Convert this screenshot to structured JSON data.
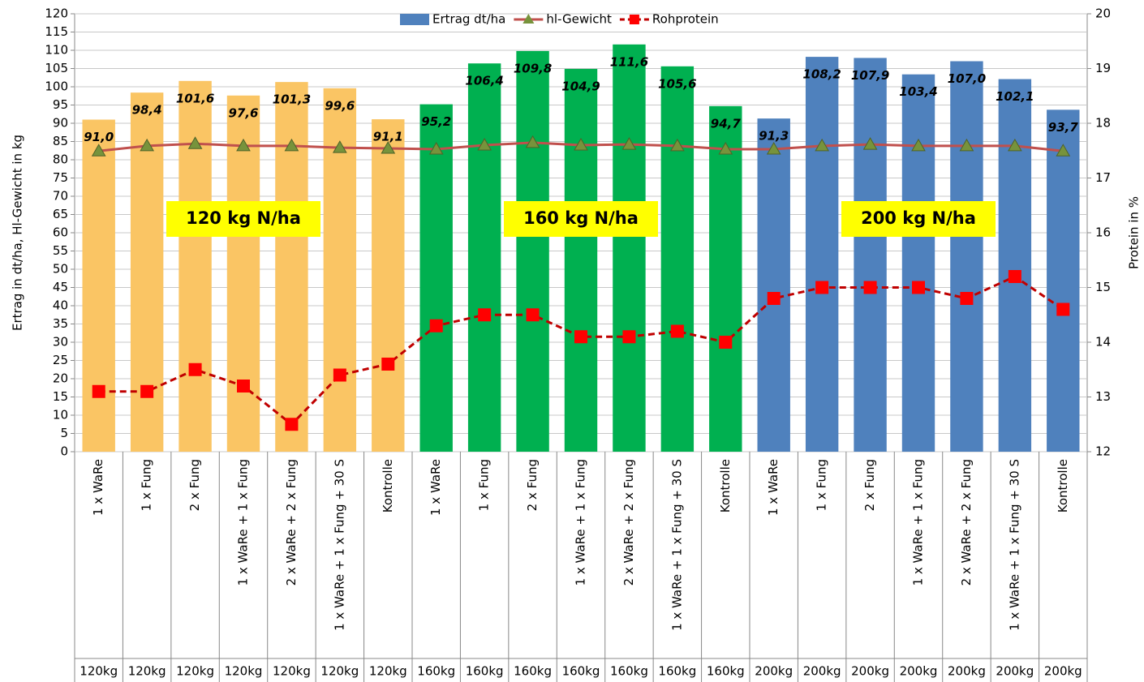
{
  "chart_data": {
    "type": "bar_line",
    "y_label": "Ertrag in dt/ha, Hl-Gewicht in kg",
    "y2_label": "Protein in %",
    "categories": [
      "1 x WaRe",
      "1 x Fung",
      "2 x Fung",
      "1 x WaRe + 1 x Fung",
      "2 x WaRe + 2 x Fung",
      "1 x WaRe + 1 x Fung + 30 S",
      "Kontrolle",
      "1 x WaRe",
      "1 x Fung",
      "2 x Fung",
      "1 x WaRe + 1 x Fung",
      "2 x WaRe + 2 x Fung",
      "1 x WaRe + 1 x Fung + 30 S",
      "Kontrolle",
      "1 x WaRe",
      "1 x Fung",
      "2 x Fung",
      "1 x WaRe + 1 x Fung",
      "2 x WaRe + 2 x Fung",
      "1 x WaRe + 1 x Fung + 30 S",
      "Kontrolle"
    ],
    "group_labels": [
      "120kg",
      "120kg",
      "120kg",
      "120kg",
      "120kg",
      "120kg",
      "120kg",
      "160kg",
      "160kg",
      "160kg",
      "160kg",
      "160kg",
      "160kg",
      "160kg",
      "200kg",
      "200kg",
      "200kg",
      "200kg",
      "200kg",
      "200kg",
      "200kg"
    ],
    "annotations": [
      "120 kg N/ha",
      "160 kg N/ha",
      "200 kg N/ha"
    ],
    "series": [
      {
        "name": "Ertrag dt/ha",
        "kind": "bar",
        "color": "#4f81bd",
        "colors": [
          "#fac564",
          "#fac564",
          "#fac564",
          "#fac564",
          "#fac564",
          "#fac564",
          "#fac564",
          "#00b050",
          "#00b050",
          "#00b050",
          "#00b050",
          "#00b050",
          "#00b050",
          "#00b050",
          "#4f81bd",
          "#4f81bd",
          "#4f81bd",
          "#4f81bd",
          "#4f81bd",
          "#4f81bd",
          "#4f81bd"
        ],
        "values": [
          91.0,
          98.4,
          101.6,
          97.6,
          101.3,
          99.6,
          91.1,
          95.2,
          106.4,
          109.8,
          104.9,
          111.6,
          105.6,
          94.7,
          91.3,
          108.2,
          107.9,
          103.4,
          107.0,
          102.1,
          93.7
        ],
        "value_labels": [
          "91,0",
          "98,4",
          "101,6",
          "97,6",
          "101,3",
          "99,6",
          "91,1",
          "95,2",
          "106,4",
          "109,8",
          "104,9",
          "111,6",
          "105,6",
          "94,7",
          "91,3",
          "108,2",
          "107,9",
          "103,4",
          "107,0",
          "102,1",
          "93,7"
        ]
      },
      {
        "name": "hl-Gewicht",
        "kind": "line",
        "color": "#c0504d",
        "marker_color": "#77933c",
        "values": [
          82.4,
          83.8,
          84.4,
          83.8,
          83.8,
          83.3,
          83.1,
          82.9,
          84.0,
          84.7,
          84.0,
          84.2,
          83.8,
          82.9,
          82.9,
          83.8,
          84.2,
          83.8,
          83.8,
          83.8,
          82.4
        ]
      },
      {
        "name": "Rohprotein",
        "kind": "line",
        "axis": "y2",
        "color": "#c00000",
        "marker_color": "#ff0000",
        "values": [
          13.1,
          13.1,
          13.5,
          13.2,
          12.5,
          13.4,
          13.6,
          14.3,
          14.5,
          14.5,
          14.1,
          14.1,
          14.2,
          14.0,
          14.8,
          15.0,
          15.0,
          15.0,
          14.8,
          15.2,
          14.6
        ]
      }
    ],
    "ylim": [
      0,
      120
    ],
    "yticks": [
      0,
      5,
      10,
      15,
      20,
      25,
      30,
      35,
      40,
      45,
      50,
      55,
      60,
      65,
      70,
      75,
      80,
      85,
      90,
      95,
      100,
      105,
      110,
      115,
      120
    ],
    "y2lim": [
      12,
      20
    ],
    "y2ticks": [
      12,
      13,
      14,
      15,
      16,
      17,
      18,
      19,
      20
    ],
    "grid": true,
    "legend": "top"
  }
}
